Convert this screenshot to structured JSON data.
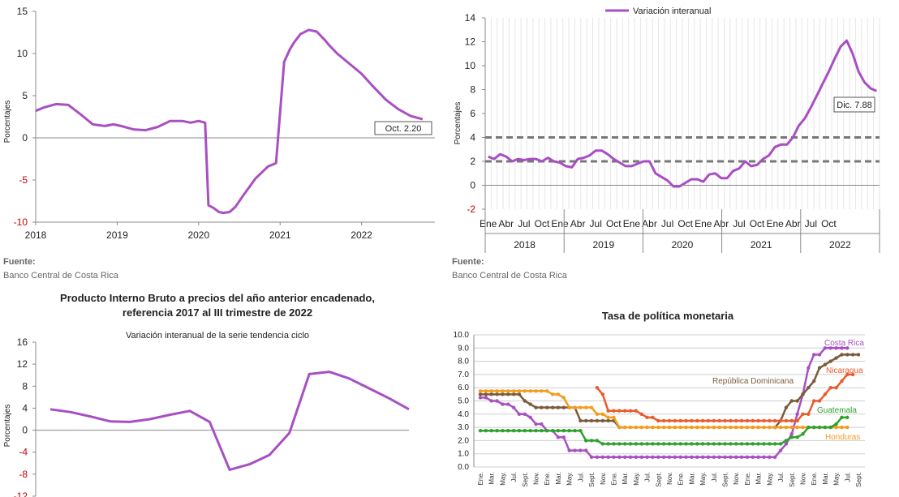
{
  "chart_data": [
    {
      "type": "line",
      "panel": "top-left",
      "title": "",
      "xlabel": "",
      "ylabel": "Porcentajes",
      "ylim": [
        -10,
        15
      ],
      "yticks": [
        -10,
        -5,
        0,
        5,
        10,
        15
      ],
      "xticks": [
        "2018",
        "2019",
        "2020",
        "2021",
        "2022"
      ],
      "color": "#a84fc3",
      "series": [
        {
          "x": [
            2018.0,
            2018.1,
            2018.25,
            2018.4,
            2018.55,
            2018.7,
            2018.85,
            2018.95,
            2019.05,
            2019.2,
            2019.35,
            2019.5,
            2019.65,
            2019.8,
            2019.9,
            2020.0,
            2020.08,
            2020.12,
            2020.18,
            2020.25,
            2020.3,
            2020.38,
            2020.45,
            2020.55,
            2020.7,
            2020.85,
            2020.95,
            2021.05,
            2021.12,
            2021.17,
            2021.25,
            2021.35,
            2021.45,
            2021.55,
            2021.6,
            2021.7,
            2021.85,
            2022.0,
            2022.15,
            2022.3,
            2022.45,
            2022.6,
            2022.75
          ],
          "y": [
            3.2,
            3.6,
            4.0,
            3.9,
            2.8,
            1.6,
            1.4,
            1.6,
            1.4,
            1.0,
            0.9,
            1.3,
            2.0,
            2.0,
            1.8,
            2.0,
            1.8,
            -8.0,
            -8.3,
            -8.8,
            -8.9,
            -8.8,
            -8.2,
            -6.8,
            -4.8,
            -3.4,
            -3.0,
            9.0,
            10.5,
            11.3,
            12.3,
            12.8,
            12.6,
            11.6,
            11.0,
            10.0,
            8.8,
            7.6,
            6.0,
            4.5,
            3.4,
            2.6,
            2.2
          ]
        }
      ],
      "annotations": [
        "Oct. 2.20"
      ],
      "source": "Banco Central de Costa Rica"
    },
    {
      "type": "line",
      "panel": "top-right",
      "title": "",
      "legend_position": "top",
      "ylim": [
        -2,
        14
      ],
      "yticks": [
        -2,
        0,
        2,
        4,
        6,
        8,
        10,
        12,
        14
      ],
      "month_labels": [
        "Ene",
        "Abr",
        "Jul",
        "Oct"
      ],
      "year_labels": [
        "2018",
        "2019",
        "2020",
        "2021",
        "2022"
      ],
      "reference_lines": [
        2,
        4
      ],
      "color": "#a84fc3",
      "series": [
        {
          "name": "Variación interanual",
          "values": [
            2.4,
            2.2,
            2.6,
            2.4,
            2.0,
            2.2,
            2.1,
            2.2,
            2.2,
            2.0,
            2.3,
            2.0,
            1.9,
            1.6,
            1.5,
            2.2,
            2.3,
            2.5,
            2.9,
            2.9,
            2.6,
            2.2,
            1.9,
            1.6,
            1.6,
            1.8,
            2.0,
            2.0,
            1.0,
            0.7,
            0.4,
            -0.1,
            -0.1,
            0.2,
            0.5,
            0.5,
            0.3,
            0.9,
            1.0,
            0.6,
            0.6,
            1.2,
            1.4,
            2.0,
            1.6,
            1.7,
            2.2,
            2.5,
            3.2,
            3.4,
            3.4,
            4.0,
            5.0,
            5.6,
            6.5,
            7.5,
            8.5,
            9.5,
            10.6,
            11.6,
            12.1,
            11.0,
            9.5,
            8.6,
            8.1,
            7.88
          ]
        }
      ],
      "annotations": [
        "Dic. 7.88"
      ],
      "source": "Banco Central de Costa Rica"
    },
    {
      "type": "line",
      "panel": "bottom-left",
      "title": "Producto Interno Bruto a precios del año anterior encadenado,",
      "title_line2": "referencia 2017 al III trimestre de 2022",
      "subtitle": "Variación interanual de la serie tendencia ciclo",
      "ylabel": "Porcentajes",
      "ylim": [
        -12,
        16
      ],
      "yticks": [
        -12,
        -8,
        -4,
        0,
        4,
        8,
        12,
        16
      ],
      "color": "#a84fc3",
      "series": [
        {
          "values": [
            3.8,
            3.3,
            2.5,
            1.6,
            1.5,
            2.0,
            2.8,
            3.5,
            1.5,
            -7.2,
            -6.2,
            -4.5,
            -0.5,
            10.2,
            10.6,
            9.4,
            7.6,
            5.8,
            3.8
          ]
        }
      ]
    },
    {
      "type": "line",
      "panel": "bottom-right",
      "title": "Tasa de política monetaria",
      "ylim": [
        0,
        10
      ],
      "yticks": [
        "0.0",
        "1.0",
        "2.0",
        "3.0",
        "4.0",
        "5.0",
        "6.0",
        "7.0",
        "8.0",
        "9.0",
        "10.0"
      ],
      "month_labels": [
        "Ene.",
        "Mar.",
        "May.",
        "Jul.",
        "Sept.",
        "Nov."
      ],
      "series": [
        {
          "name": "Costa Rica",
          "color": "#a84fc3",
          "values": [
            5.25,
            5.25,
            5.0,
            5.0,
            4.75,
            4.75,
            4.5,
            4.0,
            4.0,
            3.75,
            3.25,
            3.25,
            2.75,
            2.75,
            2.25,
            2.25,
            1.25,
            1.25,
            1.25,
            1.25,
            0.75,
            0.75,
            0.75,
            0.75,
            0.75,
            0.75,
            0.75,
            0.75,
            0.75,
            0.75,
            0.75,
            0.75,
            0.75,
            0.75,
            0.75,
            0.75,
            0.75,
            0.75,
            0.75,
            0.75,
            0.75,
            0.75,
            0.75,
            0.75,
            0.75,
            0.75,
            0.75,
            0.75,
            0.75,
            0.75,
            0.75,
            0.75,
            0.75,
            0.75,
            1.25,
            1.75,
            2.5,
            4.0,
            5.5,
            7.5,
            8.5,
            8.5,
            9.0,
            9.0,
            9.0,
            9.0,
            9.0
          ]
        },
        {
          "name": "República Dominicana",
          "color": "#7b5a3a",
          "values": [
            5.5,
            5.5,
            5.5,
            5.5,
            5.5,
            5.5,
            5.5,
            5.5,
            5.0,
            4.75,
            4.5,
            4.5,
            4.5,
            4.5,
            4.5,
            4.5,
            4.5,
            4.5,
            3.5,
            3.5,
            3.5,
            3.5,
            3.5,
            3.5,
            3.5,
            3.0,
            3.0,
            null,
            null,
            null,
            null,
            null,
            null,
            null,
            null,
            null,
            null,
            null,
            null,
            null,
            null,
            null,
            null,
            null,
            null,
            null,
            null,
            null,
            null,
            null,
            null,
            null,
            null,
            3.0,
            3.5,
            4.5,
            5.0,
            5.0,
            5.5,
            6.0,
            6.5,
            7.5,
            7.75,
            8.0,
            8.25,
            8.5,
            8.5,
            8.5,
            8.5
          ]
        },
        {
          "name": "Nicaragua",
          "color": "#e85c2c",
          "values": [
            null,
            null,
            null,
            null,
            null,
            null,
            null,
            null,
            null,
            null,
            null,
            null,
            null,
            null,
            null,
            null,
            null,
            null,
            null,
            null,
            null,
            6.0,
            5.5,
            4.25,
            4.25,
            4.25,
            4.25,
            4.25,
            4.25,
            4.0,
            3.75,
            3.75,
            3.5,
            3.5,
            3.5,
            3.5,
            3.5,
            3.5,
            3.5,
            3.5,
            3.5,
            3.5,
            3.5,
            3.5,
            3.5,
            3.5,
            3.5,
            3.5,
            3.5,
            3.5,
            3.5,
            3.5,
            3.5,
            3.5,
            3.5,
            3.5,
            3.5,
            3.5,
            4.0,
            4.0,
            5.0,
            5.0,
            5.5,
            6.0,
            6.0,
            6.5,
            7.0,
            7.0
          ]
        },
        {
          "name": "Honduras",
          "color": "#f39c1f",
          "values": [
            5.75,
            5.75,
            5.75,
            5.75,
            5.75,
            5.75,
            5.75,
            5.75,
            5.75,
            5.75,
            5.75,
            5.75,
            5.75,
            5.5,
            5.5,
            5.25,
            4.5,
            4.5,
            4.5,
            4.5,
            4.5,
            4.0,
            4.0,
            3.75,
            3.75,
            3.0,
            3.0,
            3.0,
            3.0,
            3.0,
            3.0,
            3.0,
            3.0,
            3.0,
            3.0,
            3.0,
            3.0,
            3.0,
            3.0,
            3.0,
            3.0,
            3.0,
            3.0,
            3.0,
            3.0,
            3.0,
            3.0,
            3.0,
            3.0,
            3.0,
            3.0,
            3.0,
            3.0,
            3.0,
            3.0,
            3.0,
            3.0,
            3.0,
            3.0,
            3.0,
            3.0,
            3.0,
            3.0,
            3.0,
            3.0,
            3.0,
            3.0
          ]
        },
        {
          "name": "Guatemala",
          "color": "#2ea02e",
          "values": [
            2.75,
            2.75,
            2.75,
            2.75,
            2.75,
            2.75,
            2.75,
            2.75,
            2.75,
            2.75,
            2.75,
            2.75,
            2.75,
            2.75,
            2.75,
            2.75,
            2.75,
            2.75,
            2.75,
            2.0,
            2.0,
            2.0,
            1.75,
            1.75,
            1.75,
            1.75,
            1.75,
            1.75,
            1.75,
            1.75,
            1.75,
            1.75,
            1.75,
            1.75,
            1.75,
            1.75,
            1.75,
            1.75,
            1.75,
            1.75,
            1.75,
            1.75,
            1.75,
            1.75,
            1.75,
            1.75,
            1.75,
            1.75,
            1.75,
            1.75,
            1.75,
            1.75,
            1.75,
            1.75,
            1.75,
            2.0,
            2.25,
            2.25,
            2.5,
            3.0,
            3.0,
            3.0,
            3.0,
            3.0,
            3.25,
            3.75,
            3.75
          ]
        }
      ]
    }
  ],
  "texts": {
    "source_header": "Fuente:",
    "source_text": "Banco Central de Costa Rica",
    "tl_ylabel": "Porcentajes",
    "tr_ylabel": "Porcentajes",
    "bl_ylabel": "Porcentajes",
    "tl_annotation": "Oct. 2.20",
    "tr_annotation": "Dic. 7.88",
    "tr_legend": "Variación interanual",
    "bl_title_1": "Producto Interno Bruto a precios del año anterior encadenado,",
    "bl_title_2": "referencia 2017 al III trimestre de 2022",
    "bl_subtitle": "Variación interanual de la serie tendencia ciclo",
    "br_title": "Tasa de política monetaria",
    "br_labels": {
      "costa_rica": "Costa Rica",
      "rep_dom": "República Dominicana",
      "nicaragua": "Nicaragua",
      "guatemala": "Guatemala",
      "honduras": "Honduras"
    }
  }
}
